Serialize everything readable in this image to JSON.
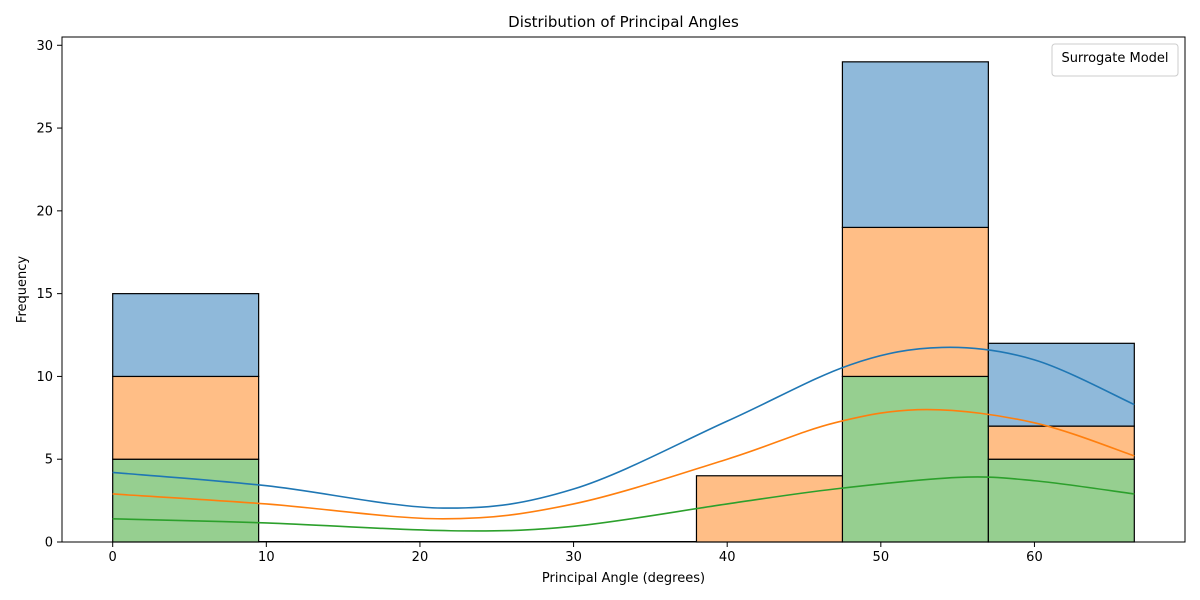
{
  "chart_data": {
    "type": "bar",
    "subtype": "stacked-histogram-with-kde",
    "title": "Distribution of Principal Angles",
    "xlabel": "Principal Angle (degrees)",
    "ylabel": "Frequency",
    "xlim": [
      -3.3,
      69.8
    ],
    "ylim": [
      0,
      30.5
    ],
    "xticks": [
      0,
      10,
      20,
      30,
      40,
      50,
      60
    ],
    "yticks": [
      0,
      5,
      10,
      15,
      20,
      25,
      30
    ],
    "bin_edges": [
      0,
      9.5,
      19.0,
      28.5,
      38.0,
      47.5,
      57.0,
      66.5
    ],
    "legend": {
      "title": "Surrogate Model",
      "position": "top-right",
      "entries": []
    },
    "series": [
      {
        "color": "#2ca02c",
        "fill": "#96cf90",
        "values": [
          5,
          0,
          0,
          0,
          0,
          10,
          5
        ]
      },
      {
        "color": "#ff7f0e",
        "fill": "#ffbe86",
        "values": [
          5,
          0,
          0,
          0,
          4,
          9,
          2
        ]
      },
      {
        "color": "#1f77b4",
        "fill": "#8fb9da",
        "values": [
          5,
          0,
          0,
          0,
          0,
          10,
          5
        ]
      }
    ],
    "kde": [
      {
        "color": "#1f77b4",
        "points": [
          [
            0,
            4.2
          ],
          [
            10,
            3.4
          ],
          [
            21.5,
            2.05
          ],
          [
            30,
            3.2
          ],
          [
            40,
            7.3
          ],
          [
            48,
            10.7
          ],
          [
            54,
            11.75
          ],
          [
            60,
            11.0
          ],
          [
            66.5,
            8.3
          ]
        ]
      },
      {
        "color": "#ff7f0e",
        "points": [
          [
            0,
            2.9
          ],
          [
            10,
            2.3
          ],
          [
            21.5,
            1.4
          ],
          [
            30,
            2.3
          ],
          [
            40,
            5.0
          ],
          [
            47,
            7.2
          ],
          [
            53,
            8.0
          ],
          [
            60,
            7.2
          ],
          [
            66.5,
            5.2
          ]
        ]
      },
      {
        "color": "#2ca02c",
        "points": [
          [
            0,
            1.4
          ],
          [
            10,
            1.15
          ],
          [
            22,
            0.68
          ],
          [
            30,
            0.95
          ],
          [
            40,
            2.3
          ],
          [
            47,
            3.2
          ],
          [
            55,
            3.9
          ],
          [
            60,
            3.7
          ],
          [
            66.5,
            2.9
          ]
        ]
      }
    ]
  }
}
